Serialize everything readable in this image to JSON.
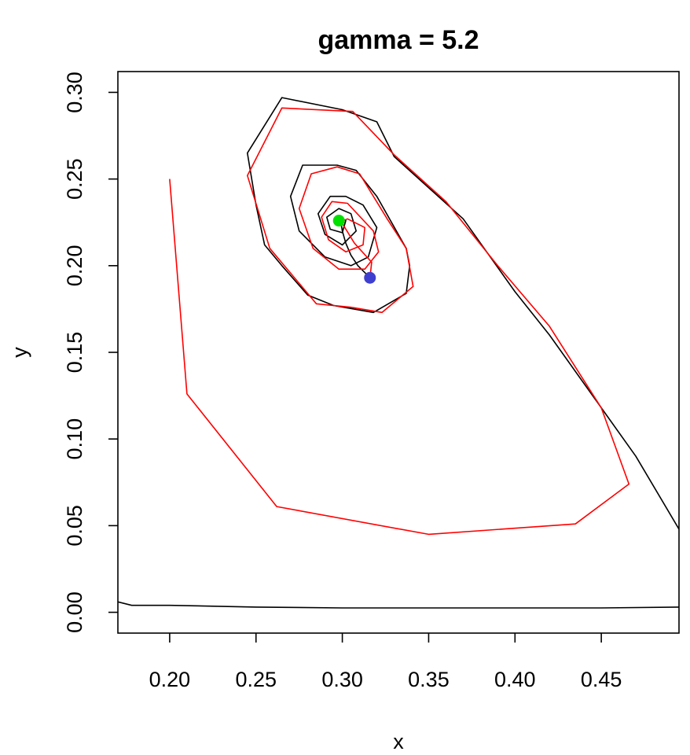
{
  "chart_data": {
    "type": "line",
    "title": "gamma = 5.2",
    "xlabel": "x",
    "ylabel": "y",
    "xlim": [
      0.17,
      0.495
    ],
    "ylim": [
      -0.012,
      0.312
    ],
    "xticks": [
      0.2,
      0.25,
      0.3,
      0.35,
      0.4,
      0.45
    ],
    "xtick_labels": [
      "0.20",
      "0.25",
      "0.30",
      "0.35",
      "0.40",
      "0.45"
    ],
    "yticks": [
      0.0,
      0.05,
      0.1,
      0.15,
      0.2,
      0.25,
      0.3
    ],
    "ytick_labels": [
      "0.00",
      "0.05",
      "0.10",
      "0.15",
      "0.20",
      "0.25",
      "0.30"
    ],
    "grid": false,
    "legend": "none",
    "series": [
      {
        "color": "#000000",
        "points": [
          [
            0.17,
            0.006
          ],
          [
            0.178,
            0.004
          ],
          [
            0.2,
            0.004
          ],
          [
            0.25,
            0.003
          ],
          [
            0.3,
            0.0025
          ],
          [
            0.35,
            0.0025
          ],
          [
            0.4,
            0.0025
          ],
          [
            0.45,
            0.0025
          ],
          [
            0.495,
            0.003
          ]
        ]
      },
      {
        "color": "#000000",
        "points": [
          [
            0.495,
            0.048
          ],
          [
            0.47,
            0.09
          ],
          [
            0.45,
            0.118
          ],
          [
            0.42,
            0.16
          ],
          [
            0.4,
            0.185
          ],
          [
            0.37,
            0.227
          ],
          [
            0.35,
            0.245
          ],
          [
            0.33,
            0.263
          ],
          [
            0.32,
            0.283
          ],
          [
            0.3,
            0.29
          ],
          [
            0.265,
            0.297
          ],
          [
            0.245,
            0.265
          ],
          [
            0.25,
            0.235
          ],
          [
            0.255,
            0.212
          ],
          [
            0.265,
            0.2
          ],
          [
            0.28,
            0.183
          ],
          [
            0.295,
            0.177
          ],
          [
            0.318,
            0.173
          ],
          [
            0.337,
            0.184
          ],
          [
            0.339,
            0.2
          ],
          [
            0.337,
            0.21
          ],
          [
            0.32,
            0.24
          ],
          [
            0.308,
            0.255
          ],
          [
            0.297,
            0.258
          ],
          [
            0.277,
            0.258
          ],
          [
            0.27,
            0.24
          ],
          [
            0.275,
            0.22
          ],
          [
            0.29,
            0.205
          ],
          [
            0.305,
            0.2
          ],
          [
            0.315,
            0.205
          ],
          [
            0.32,
            0.222
          ],
          [
            0.312,
            0.235
          ],
          [
            0.302,
            0.24
          ],
          [
            0.293,
            0.24
          ],
          [
            0.286,
            0.23
          ],
          [
            0.29,
            0.218
          ],
          [
            0.3,
            0.212
          ],
          [
            0.308,
            0.22
          ],
          [
            0.305,
            0.23
          ],
          [
            0.298,
            0.233
          ],
          [
            0.291,
            0.228
          ],
          [
            0.293,
            0.221
          ],
          [
            0.3,
            0.219
          ],
          [
            0.302,
            0.226
          ],
          [
            0.299,
            0.228
          ]
        ]
      },
      {
        "color": "#000000",
        "points": [
          [
            0.299,
            0.226
          ],
          [
            0.3,
            0.22
          ],
          [
            0.302,
            0.213
          ],
          [
            0.305,
            0.206
          ],
          [
            0.309,
            0.2
          ],
          [
            0.313,
            0.196
          ],
          [
            0.316,
            0.193
          ]
        ]
      },
      {
        "color": "#ff0000",
        "points": [
          [
            0.2,
            0.25
          ],
          [
            0.21,
            0.126
          ],
          [
            0.262,
            0.061
          ],
          [
            0.35,
            0.045
          ],
          [
            0.435,
            0.051
          ],
          [
            0.466,
            0.074
          ],
          [
            0.45,
            0.118
          ],
          [
            0.42,
            0.165
          ],
          [
            0.39,
            0.2
          ],
          [
            0.36,
            0.237
          ],
          [
            0.33,
            0.264
          ],
          [
            0.306,
            0.289
          ],
          [
            0.265,
            0.291
          ],
          [
            0.245,
            0.252
          ],
          [
            0.258,
            0.21
          ],
          [
            0.285,
            0.178
          ],
          [
            0.305,
            0.176
          ],
          [
            0.323,
            0.173
          ],
          [
            0.341,
            0.188
          ],
          [
            0.337,
            0.21
          ],
          [
            0.326,
            0.227
          ],
          [
            0.31,
            0.253
          ],
          [
            0.297,
            0.257
          ],
          [
            0.282,
            0.253
          ],
          [
            0.275,
            0.233
          ],
          [
            0.283,
            0.21
          ],
          [
            0.298,
            0.198
          ],
          [
            0.313,
            0.198
          ],
          [
            0.321,
            0.208
          ],
          [
            0.318,
            0.22
          ],
          [
            0.303,
            0.236
          ],
          [
            0.294,
            0.237
          ],
          [
            0.288,
            0.228
          ],
          [
            0.292,
            0.215
          ],
          [
            0.302,
            0.208
          ],
          [
            0.312,
            0.212
          ],
          [
            0.313,
            0.222
          ],
          [
            0.303,
            0.227
          ],
          [
            0.296,
            0.224
          ],
          [
            0.299,
            0.226
          ],
          [
            0.307,
            0.213
          ],
          [
            0.317,
            0.202
          ],
          [
            0.316,
            0.193
          ]
        ]
      }
    ],
    "points": [
      {
        "name": "start",
        "x": 0.316,
        "y": 0.193,
        "color": "#3f3fcf"
      },
      {
        "name": "equilibrium",
        "x": 0.298,
        "y": 0.226,
        "color": "#00e000"
      }
    ]
  }
}
